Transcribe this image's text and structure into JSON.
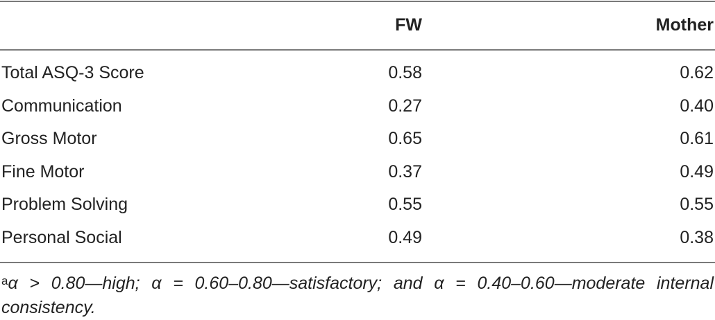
{
  "table": {
    "header": [
      "FW",
      "Mother"
    ],
    "rows": [
      [
        "Total ASQ-3 Score",
        "0.58",
        "0.62"
      ],
      [
        "Communication",
        "0.27",
        "0.40"
      ],
      [
        "Gross Motor",
        "0.65",
        "0.61"
      ],
      [
        "Fine Motor",
        "0.37",
        "0.49"
      ],
      [
        "Problem Solving",
        "0.55",
        "0.55"
      ],
      [
        "Personal Social",
        "0.49",
        "0.38"
      ]
    ]
  },
  "footnote": {
    "marker": "a",
    "text": "α > 0.80—high; α = 0.60–0.80—satisfactory; and α = 0.40–0.60—moderate internal consistency."
  }
}
